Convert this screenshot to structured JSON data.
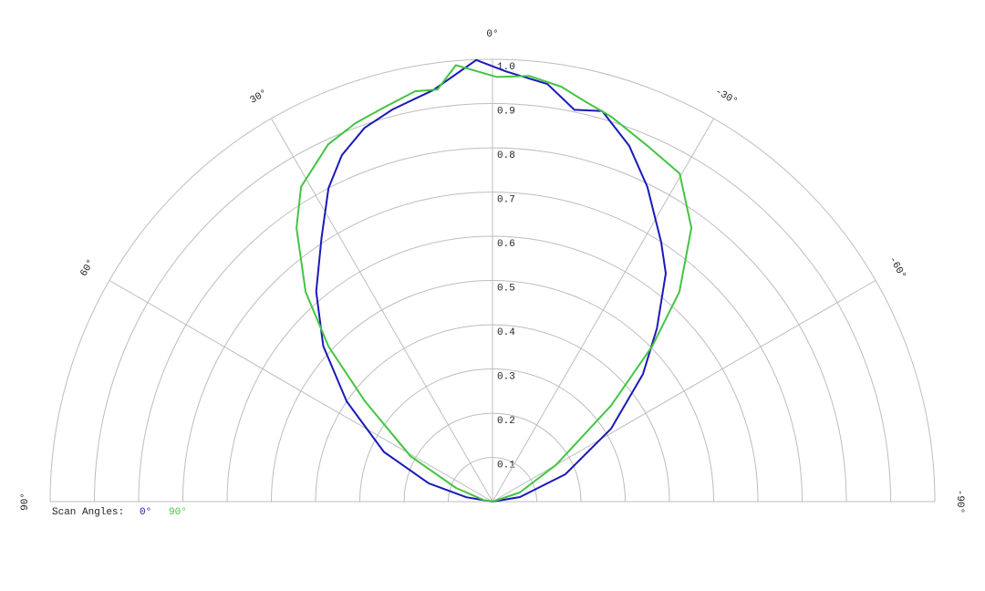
{
  "chart_data": {
    "type": "polar",
    "rlim": [
      0,
      1
    ],
    "thetalim": [
      -90,
      90
    ],
    "rticks": [
      0.1,
      0.2,
      0.3,
      0.4,
      0.5,
      0.6,
      0.7,
      0.8,
      0.9,
      {
        "value": 1,
        "label": "1.0"
      }
    ],
    "thetaticks": [
      {
        "value": 0,
        "label": "0°"
      },
      {
        "value": 30,
        "label": "30°"
      },
      {
        "value": 60,
        "label": "60°"
      },
      {
        "value": 90,
        "label": "90°"
      },
      {
        "value": -30,
        "label": "-30°"
      },
      {
        "value": -60,
        "label": "-60°"
      },
      {
        "value": -90,
        "label": "-90°"
      }
    ],
    "legend_title": "Scan Angles:",
    "series": [
      {
        "name": "0°",
        "color": "#1a1ab8",
        "x": [
          -90,
          -80.5,
          -69.4,
          -58.4,
          -49.7,
          -43.5,
          -37.2,
          -33,
          -26.2,
          -21,
          -15.7,
          -11.8,
          -7.5,
          -1.8,
          2.1,
          8.2,
          14.3,
          18.9,
          23.5,
          27.6,
          33,
          40,
          47.4,
          55.5,
          65.4,
          74,
          80.5,
          90
        ],
        "values": [
          0,
          0.063,
          0.176,
          0.315,
          0.446,
          0.54,
          0.648,
          0.7,
          0.793,
          0.862,
          0.917,
          0.905,
          0.952,
          0.973,
          0.999,
          0.94,
          0.915,
          0.893,
          0.854,
          0.8,
          0.71,
          0.62,
          0.52,
          0.4,
          0.27,
          0.15,
          0.06,
          0
        ]
      },
      {
        "name": "90°",
        "color": "#44c444",
        "x": [
          -90,
          -71.6,
          -60,
          -51,
          -45.8,
          -41.7,
          -36,
          -29.7,
          -23.6,
          -17.1,
          -12.8,
          -9.4,
          -4.9,
          -0.6,
          4.8,
          7.6,
          10.7,
          15.5,
          19.9,
          24.7,
          31.3,
          35.6,
          41.7,
          46.6,
          51.8,
          61,
          69.4,
          80,
          90
        ],
        "values": [
          0,
          0.065,
          0.166,
          0.345,
          0.503,
          0.635,
          0.765,
          0.854,
          0.877,
          0.911,
          0.93,
          0.951,
          0.966,
          0.96,
          0.99,
          0.94,
          0.944,
          0.924,
          0.91,
          0.889,
          0.833,
          0.761,
          0.635,
          0.51,
          0.367,
          0.212,
          0.088,
          0.02,
          0
        ]
      }
    ]
  }
}
